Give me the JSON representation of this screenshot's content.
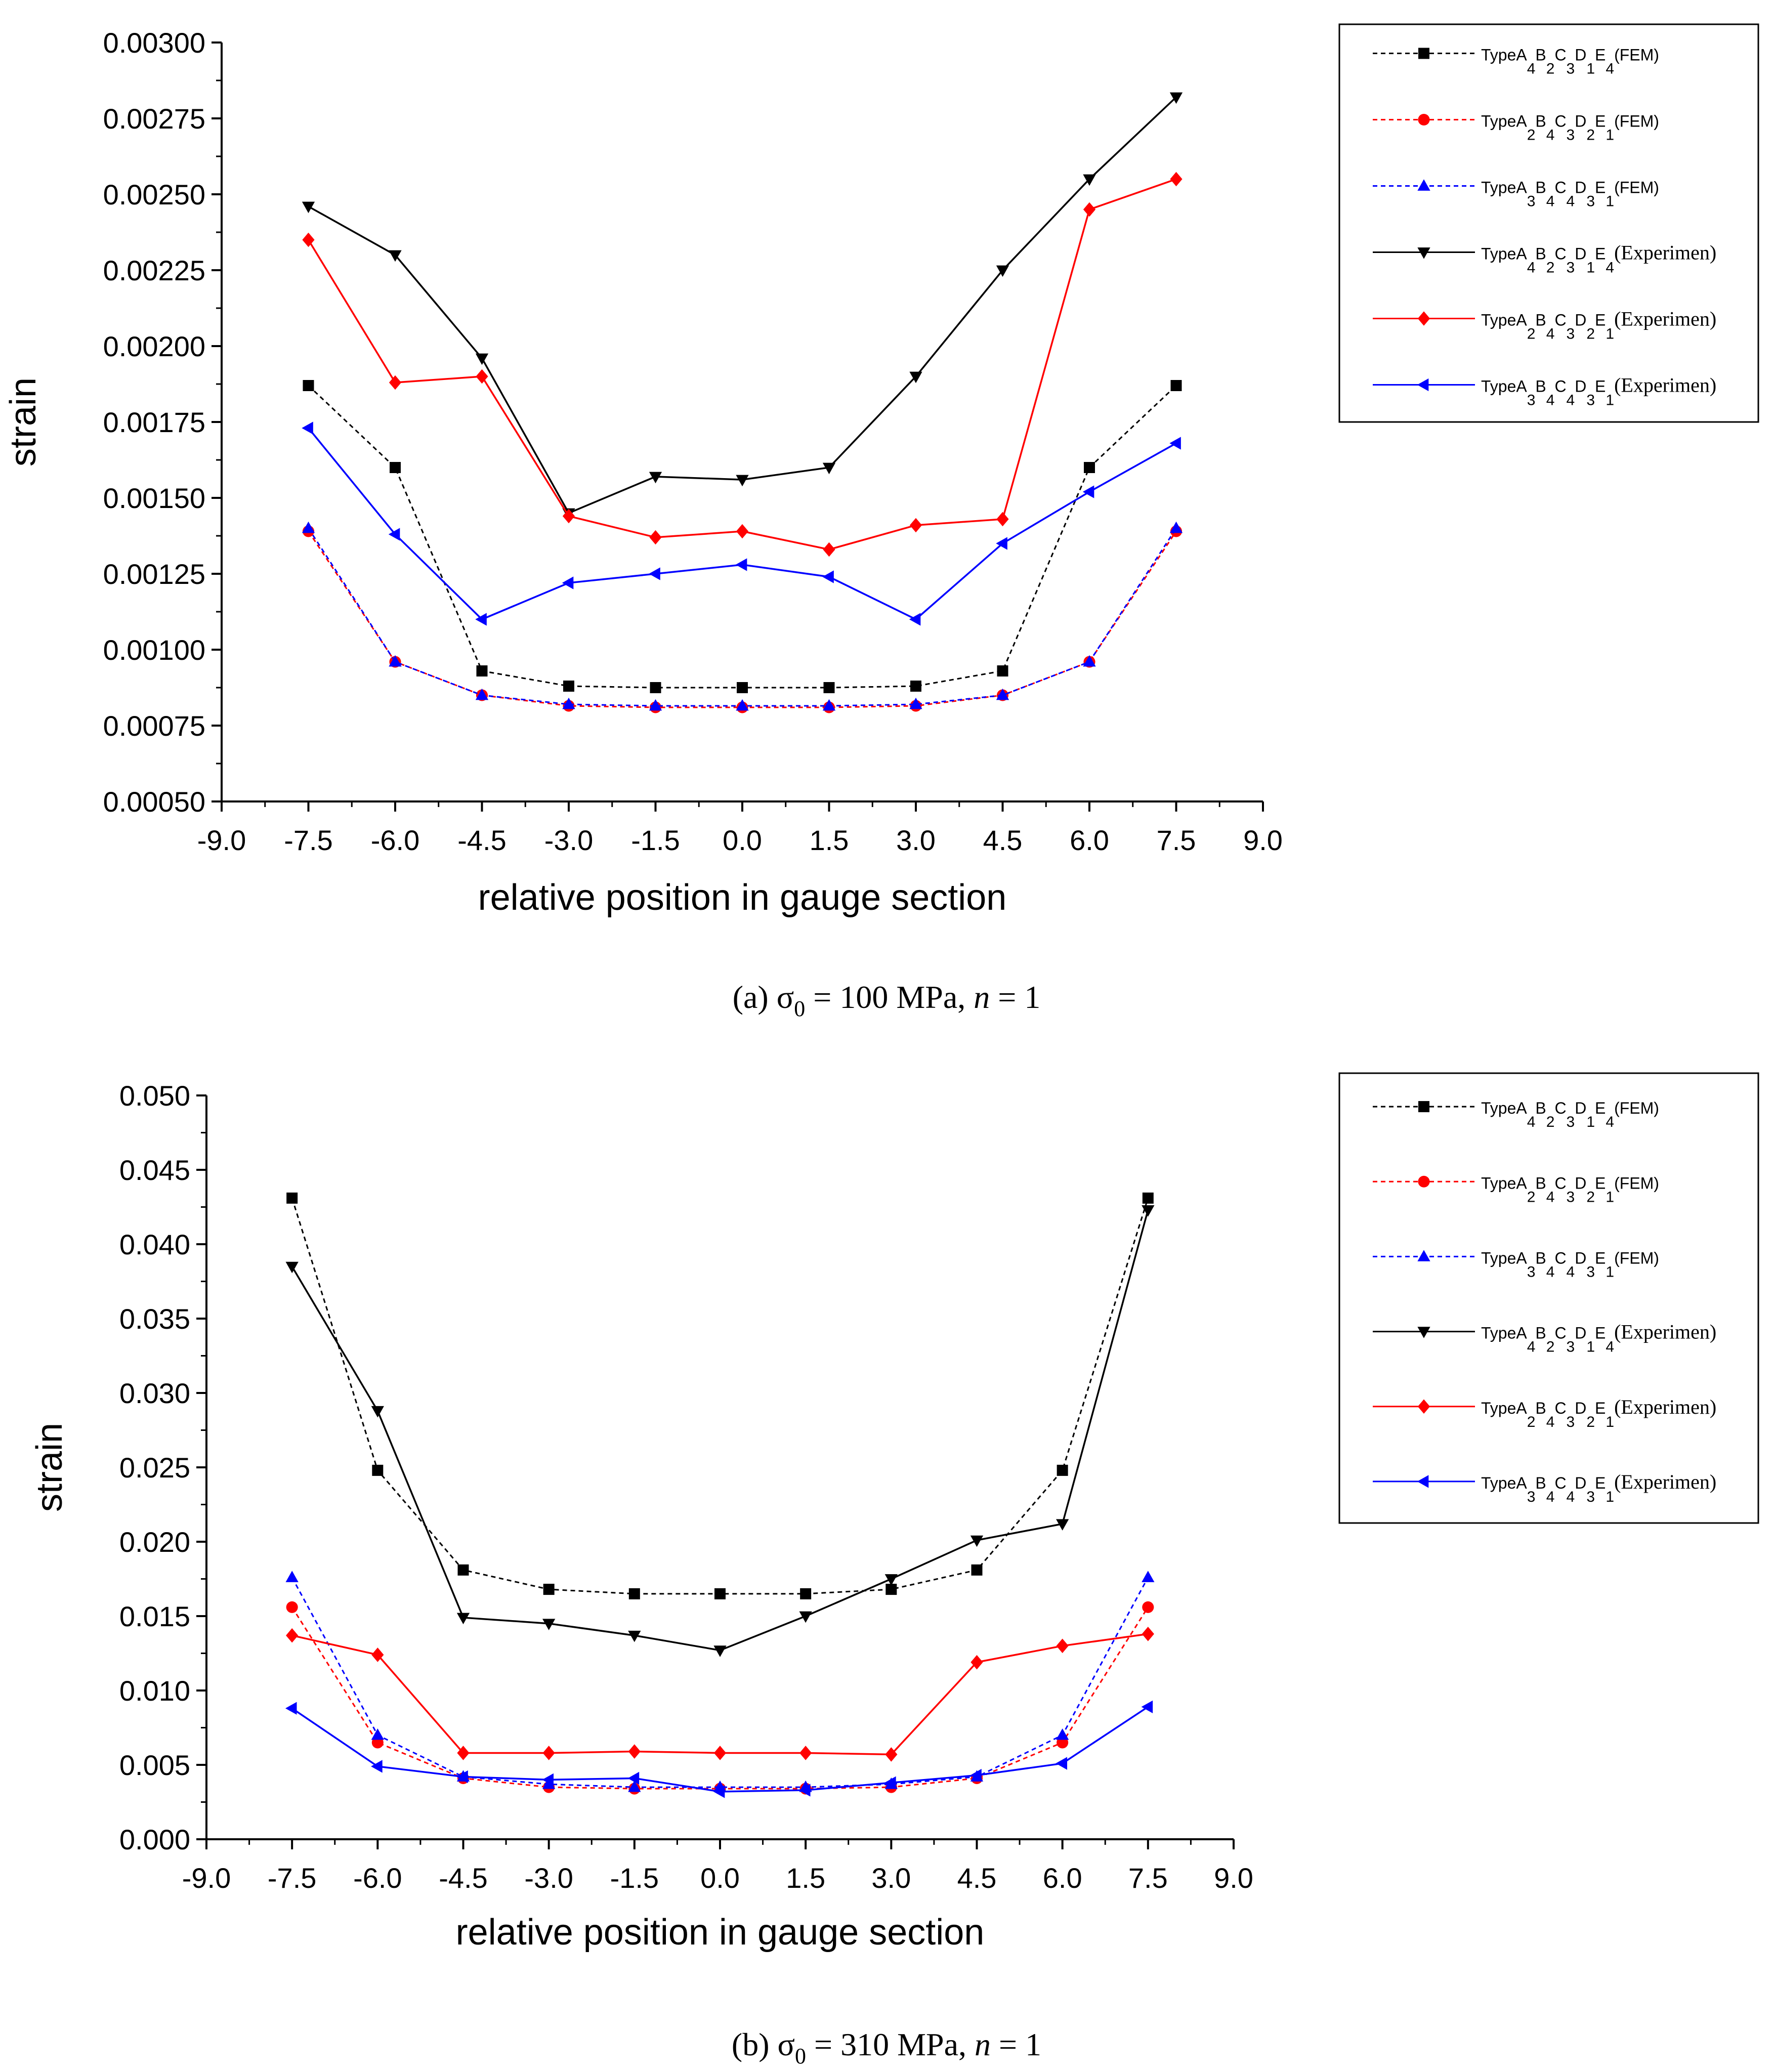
{
  "chart_data": [
    {
      "type": "line",
      "id": "a",
      "caption": {
        "label": "(a)",
        "sigma": "σ",
        "sub": "0",
        "text": " = 100 MPa, ",
        "n_var": "n",
        "n_text": " = 1"
      },
      "xlabel": "relative position in gauge section",
      "ylabel": "strain",
      "xlim": [
        -9.0,
        9.0
      ],
      "ylim": [
        0.0005,
        0.003
      ],
      "xticks": [
        -9.0,
        -7.5,
        -6.0,
        -4.5,
        -3.0,
        -1.5,
        0.0,
        1.5,
        3.0,
        4.5,
        6.0,
        7.5,
        9.0
      ],
      "xtick_labels": [
        "-9.0",
        "-7.5",
        "-6.0",
        "-4.5",
        "-3.0",
        "-1.5",
        "0.0",
        "1.5",
        "3.0",
        "4.5",
        "6.0",
        "7.5",
        "9.0"
      ],
      "yticks": [
        0.0005,
        0.00075,
        0.001,
        0.00125,
        0.0015,
        0.00175,
        0.002,
        0.00225,
        0.0025,
        0.00275,
        0.003
      ],
      "ytick_labels": [
        "0.00050",
        "0.00075",
        "0.00100",
        "0.00125",
        "0.00150",
        "0.00175",
        "0.00200",
        "0.00225",
        "0.00250",
        "0.00275",
        "0.00300"
      ],
      "x": [
        -7.5,
        -6.0,
        -4.5,
        -3.0,
        -1.5,
        0.0,
        1.5,
        3.0,
        4.5,
        6.0,
        7.5
      ],
      "series": [
        {
          "name": "TypeA4B2C3D1E4(FEM)",
          "color": "#000000",
          "dash": true,
          "marker": "square",
          "legend": {
            "prefix": "TypeA",
            "subs": [
              "4",
              "2",
              "3",
              "1",
              "4"
            ],
            "suffix": "(FEM)"
          },
          "values": [
            0.00187,
            0.0016,
            0.00093,
            0.00088,
            0.000875,
            0.000875,
            0.000875,
            0.00088,
            0.00093,
            0.0016,
            0.00187
          ]
        },
        {
          "name": "TypeA2B4C3D2E1(FEM)",
          "color": "#ff0000",
          "dash": true,
          "marker": "circle",
          "legend": {
            "prefix": "TypeA",
            "subs": [
              "2",
              "4",
              "3",
              "2",
              "1"
            ],
            "suffix": "(FEM)"
          },
          "values": [
            0.00139,
            0.00096,
            0.00085,
            0.000815,
            0.00081,
            0.00081,
            0.00081,
            0.000815,
            0.00085,
            0.00096,
            0.00139
          ]
        },
        {
          "name": "TypeA3B4C4D3E1(FEM)",
          "color": "#0000ff",
          "dash": true,
          "marker": "triangle-up",
          "legend": {
            "prefix": "TypeA",
            "subs": [
              "3",
              "4",
              "4",
              "3",
              "1"
            ],
            "suffix": "(FEM)"
          },
          "values": [
            0.0014,
            0.00096,
            0.00085,
            0.00082,
            0.000815,
            0.000815,
            0.000815,
            0.00082,
            0.00085,
            0.00096,
            0.0014
          ]
        },
        {
          "name": "TypeA4B2C3D1E4(Experimen)",
          "color": "#000000",
          "dash": false,
          "marker": "triangle-down",
          "legend": {
            "prefix": "TypeA",
            "subs": [
              "4",
              "2",
              "3",
              "1",
              "4"
            ],
            "suffix": "(Experimen)"
          },
          "values": [
            0.00246,
            0.0023,
            0.00196,
            0.00145,
            0.00157,
            0.00156,
            0.0016,
            0.0019,
            0.00225,
            0.00255,
            0.00282
          ]
        },
        {
          "name": "TypeA2B4C3D2E1(Experimen)",
          "color": "#ff0000",
          "dash": false,
          "marker": "diamond",
          "legend": {
            "prefix": "TypeA",
            "subs": [
              "2",
              "4",
              "3",
              "2",
              "1"
            ],
            "suffix": "(Experimen)"
          },
          "values": [
            0.00235,
            0.00188,
            0.0019,
            0.00144,
            0.00137,
            0.00139,
            0.00133,
            0.00141,
            0.00143,
            0.00245,
            0.00255
          ]
        },
        {
          "name": "TypeA3B4C4D3E1(Experimen)",
          "color": "#0000ff",
          "dash": false,
          "marker": "triangle-left",
          "legend": {
            "prefix": "TypeA",
            "subs": [
              "3",
              "4",
              "4",
              "3",
              "1"
            ],
            "suffix": "(Experimen)"
          },
          "values": [
            0.00173,
            0.00138,
            0.0011,
            0.00122,
            0.00125,
            0.00128,
            0.00124,
            0.0011,
            0.00135,
            0.00152,
            0.00168
          ]
        }
      ]
    },
    {
      "type": "line",
      "id": "b",
      "caption": {
        "label": "(b)",
        "sigma": "σ",
        "sub": "0",
        "text": " = 310 MPa, ",
        "n_var": "n",
        "n_text": " = 1"
      },
      "xlabel": "relative position in gauge section",
      "ylabel": "strain",
      "xlim": [
        -9.0,
        9.0
      ],
      "ylim": [
        0.0,
        0.05
      ],
      "xticks": [
        -9.0,
        -7.5,
        -6.0,
        -4.5,
        -3.0,
        -1.5,
        0.0,
        1.5,
        3.0,
        4.5,
        6.0,
        7.5,
        9.0
      ],
      "xtick_labels": [
        "-9.0",
        "-7.5",
        "-6.0",
        "-4.5",
        "-3.0",
        "-1.5",
        "0.0",
        "1.5",
        "3.0",
        "4.5",
        "6.0",
        "7.5",
        "9.0"
      ],
      "yticks": [
        0.0,
        0.005,
        0.01,
        0.015,
        0.02,
        0.025,
        0.03,
        0.035,
        0.04,
        0.045,
        0.05
      ],
      "ytick_labels": [
        "0.000",
        "0.005",
        "0.010",
        "0.015",
        "0.020",
        "0.025",
        "0.030",
        "0.035",
        "0.040",
        "0.045",
        "0.050"
      ],
      "x": [
        -7.5,
        -6.0,
        -4.5,
        -3.0,
        -1.5,
        0.0,
        1.5,
        3.0,
        4.5,
        6.0,
        7.5
      ],
      "series": [
        {
          "name": "TypeA4B2C3D1E4(FEM)",
          "color": "#000000",
          "dash": true,
          "marker": "square",
          "legend": {
            "prefix": "TypeA",
            "subs": [
              "4",
              "2",
              "3",
              "1",
              "4"
            ],
            "suffix": "(FEM)"
          },
          "values": [
            0.0431,
            0.0248,
            0.0181,
            0.0168,
            0.0165,
            0.0165,
            0.0165,
            0.0168,
            0.0181,
            0.0248,
            0.0431
          ]
        },
        {
          "name": "TypeA2B4C3D2E1(FEM)",
          "color": "#ff0000",
          "dash": true,
          "marker": "circle",
          "legend": {
            "prefix": "TypeA",
            "subs": [
              "2",
              "4",
              "3",
              "2",
              "1"
            ],
            "suffix": "(FEM)"
          },
          "values": [
            0.0156,
            0.0065,
            0.0041,
            0.0035,
            0.0034,
            0.0034,
            0.0034,
            0.0035,
            0.0041,
            0.0065,
            0.0156
          ]
        },
        {
          "name": "TypeA3B4C4D3E1(FEM)",
          "color": "#0000ff",
          "dash": true,
          "marker": "triangle-up",
          "legend": {
            "prefix": "TypeA",
            "subs": [
              "3",
              "4",
              "4",
              "3",
              "1"
            ],
            "suffix": "(FEM)"
          },
          "values": [
            0.0176,
            0.007,
            0.0042,
            0.0037,
            0.0035,
            0.0035,
            0.0035,
            0.0037,
            0.0042,
            0.007,
            0.0176
          ]
        },
        {
          "name": "TypeA4B2C3D1E4(Experimen)",
          "color": "#000000",
          "dash": false,
          "marker": "triangle-down",
          "legend": {
            "prefix": "TypeA",
            "subs": [
              "4",
              "2",
              "3",
              "1",
              "4"
            ],
            "suffix": "(Experimen)"
          },
          "values": [
            0.0385,
            0.0288,
            0.0149,
            0.0145,
            0.0137,
            0.0127,
            0.015,
            0.0175,
            0.0201,
            0.0212,
            0.0423
          ]
        },
        {
          "name": "TypeA2B4C3D2E1(Experimen)",
          "color": "#ff0000",
          "dash": false,
          "marker": "diamond",
          "legend": {
            "prefix": "TypeA",
            "subs": [
              "2",
              "4",
              "3",
              "2",
              "1"
            ],
            "suffix": "(Experimen)"
          },
          "values": [
            0.0137,
            0.0124,
            0.0058,
            0.0058,
            0.0059,
            0.0058,
            0.0058,
            0.0057,
            0.0119,
            0.013,
            0.0138
          ]
        },
        {
          "name": "TypeA3B4C4D3E1(Experimen)",
          "color": "#0000ff",
          "dash": false,
          "marker": "triangle-left",
          "legend": {
            "prefix": "TypeA",
            "subs": [
              "3",
              "4",
              "4",
              "3",
              "1"
            ],
            "suffix": "(Experimen)"
          },
          "values": [
            0.0088,
            0.0049,
            0.0042,
            0.004,
            0.0041,
            0.0032,
            0.0033,
            0.0038,
            0.0043,
            0.0051,
            0.0089
          ]
        }
      ]
    }
  ]
}
